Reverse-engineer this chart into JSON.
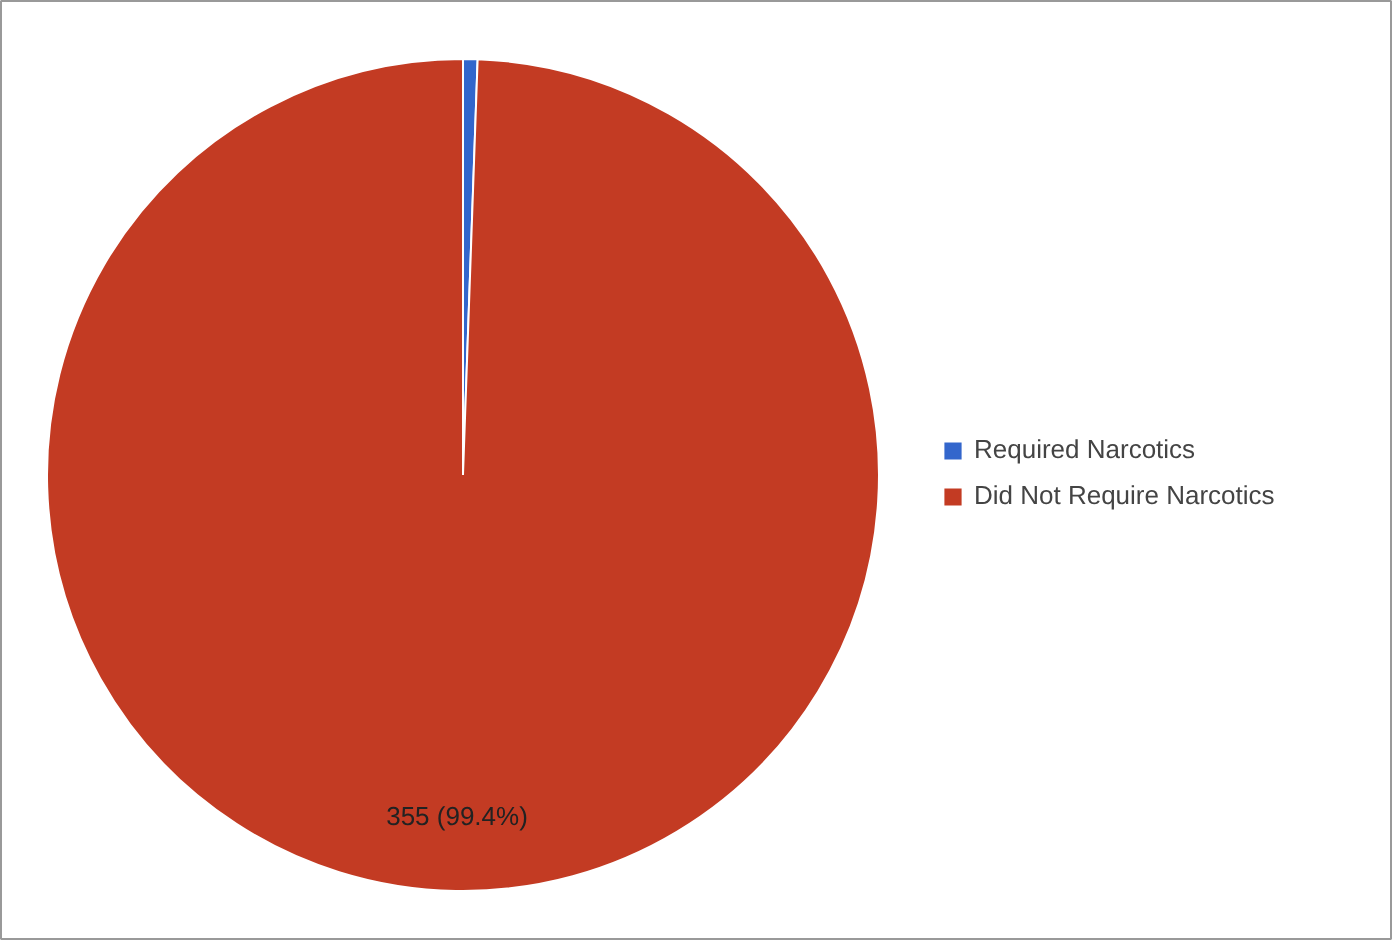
{
  "chart_data": {
    "type": "pie",
    "categories": [
      "Required Narcotics",
      "Did Not Require Narcotics"
    ],
    "values": [
      2,
      355
    ],
    "colors": [
      "#3366cc",
      "#c33b23"
    ],
    "value_labels": [
      null,
      "355 (99.4%)"
    ],
    "legend": "right"
  }
}
